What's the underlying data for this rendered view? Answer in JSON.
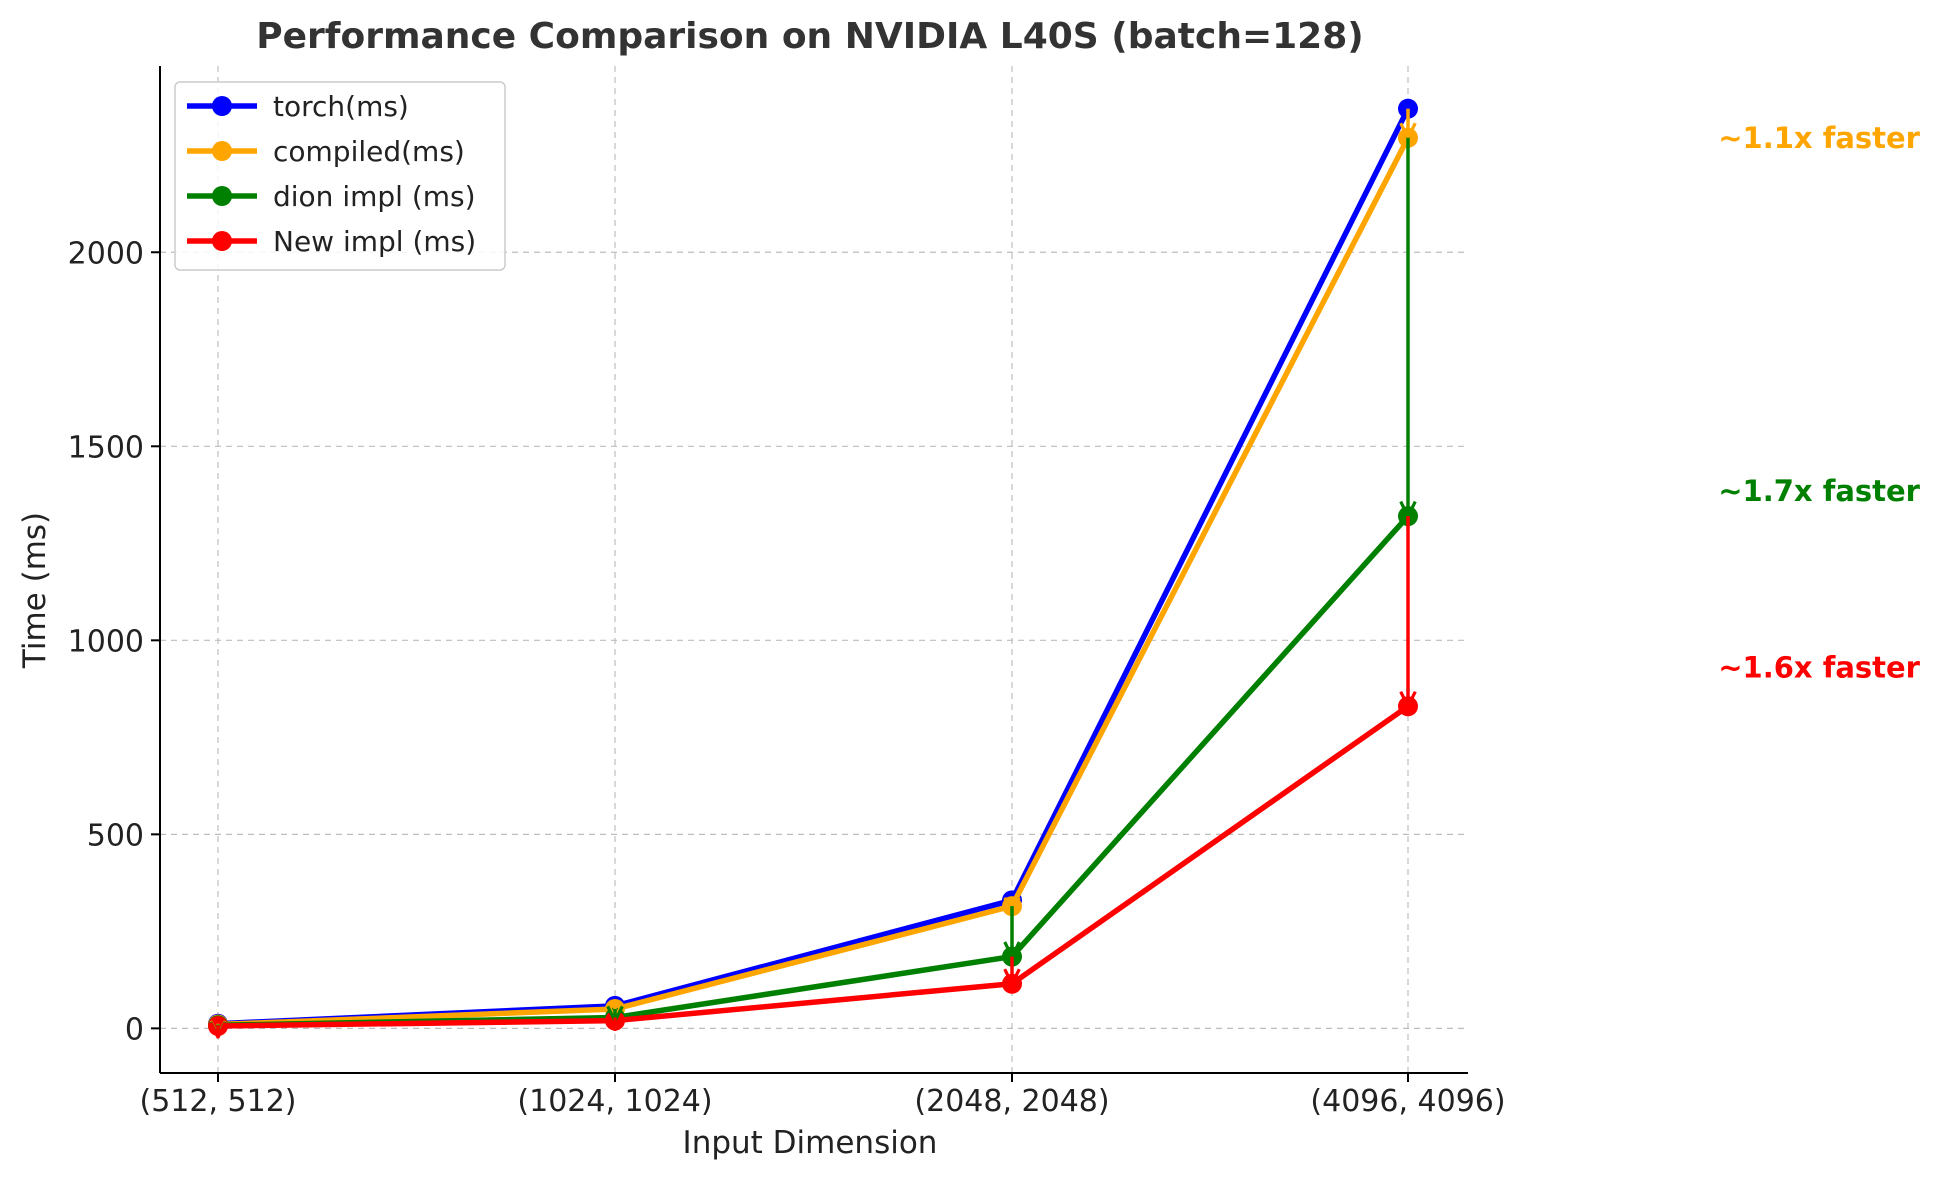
{
  "chart_data": {
    "type": "line",
    "title": "Performance Comparison on NVIDIA L40S (batch=128)",
    "xlabel": "Input Dimension",
    "ylabel": "Time (ms)",
    "categories": [
      "(512, 512)",
      "(1024, 1024)",
      "(2048, 2048)",
      "(4096, 4096)"
    ],
    "ylim": [
      -115,
      2480
    ],
    "yticks": [
      0,
      500,
      1000,
      1500,
      2000
    ],
    "grid": true,
    "legend_position": "top-left",
    "series": [
      {
        "name": "torch(ms)",
        "color": "#0000ff",
        "values": [
          12,
          58,
          330,
          2370
        ]
      },
      {
        "name": "compiled(ms)",
        "color": "#ffa500",
        "values": [
          10,
          50,
          315,
          2295
        ]
      },
      {
        "name": "dion impl (ms)",
        "color": "#008000",
        "values": [
          8,
          28,
          185,
          1320
        ]
      },
      {
        "name": "New impl (ms)",
        "color": "#ff0000",
        "values": [
          6,
          20,
          115,
          830
        ]
      }
    ],
    "arrows": [
      {
        "color": "#ffa500",
        "category_index": 0,
        "from": 12,
        "to": 10
      },
      {
        "color": "#008000",
        "category_index": 0,
        "from": 10,
        "to": 8
      },
      {
        "color": "#ff0000",
        "category_index": 0,
        "from": 8,
        "to": 6
      },
      {
        "color": "#ffa500",
        "category_index": 1,
        "from": 58,
        "to": 50
      },
      {
        "color": "#008000",
        "category_index": 1,
        "from": 50,
        "to": 28
      },
      {
        "color": "#ff0000",
        "category_index": 1,
        "from": 28,
        "to": 20
      },
      {
        "color": "#ffa500",
        "category_index": 2,
        "from": 330,
        "to": 315
      },
      {
        "color": "#008000",
        "category_index": 2,
        "from": 315,
        "to": 185
      },
      {
        "color": "#ff0000",
        "category_index": 2,
        "from": 185,
        "to": 115
      },
      {
        "color": "#ffa500",
        "category_index": 3,
        "from": 2370,
        "to": 2295
      },
      {
        "color": "#008000",
        "category_index": 3,
        "from": 2295,
        "to": 1320
      },
      {
        "color": "#ff0000",
        "category_index": 3,
        "from": 1320,
        "to": 830
      }
    ],
    "annotations": [
      {
        "text": "~1.1x faster",
        "color": "#ffa500",
        "anchor_value": 2295
      },
      {
        "text": "~1.7x faster",
        "color": "#008000",
        "anchor_value": 1385
      },
      {
        "text": "~1.6x faster",
        "color": "#ff0000",
        "anchor_value": 930
      }
    ]
  }
}
